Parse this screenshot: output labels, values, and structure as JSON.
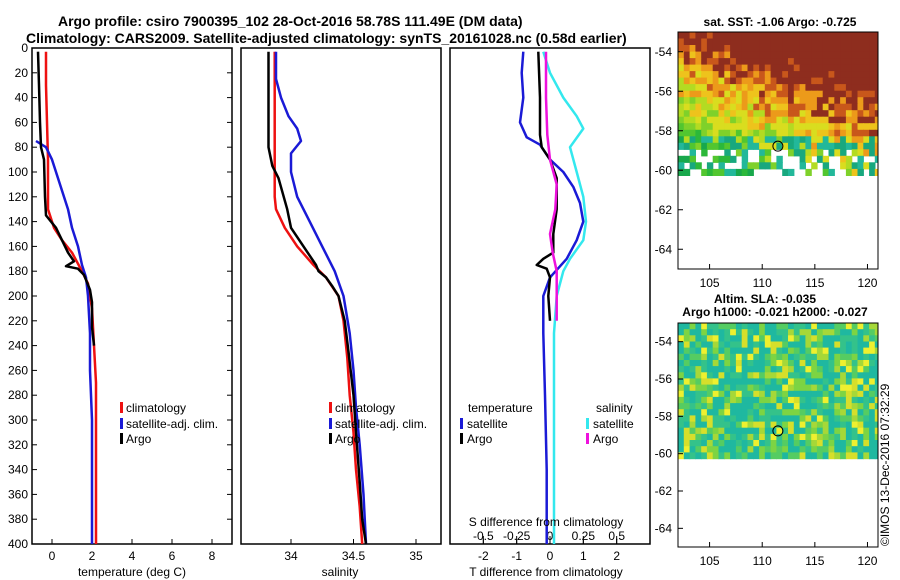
{
  "header": {
    "line1": "Argo profile: csiro 7900395_102 28-Oct-2016 58.78S 111.49E (DM data)",
    "line2": "Climatology: CARS2009. Satellite-adjusted climatology: synTS_20161028.nc (0.58d earlier)"
  },
  "colors": {
    "climatology": "#ee1111",
    "satellite": "#1a1ad6",
    "argo": "#000000",
    "sat_salinity": "#33e8ee",
    "argo_salinity": "#ee11dd"
  },
  "chart_data": [
    {
      "type": "line",
      "title": "",
      "xlabel": "temperature (deg C)",
      "ylabel": "",
      "xlim": [
        -1,
        9
      ],
      "ylim": [
        400,
        0
      ],
      "xticks": [
        0,
        2,
        4,
        6,
        8
      ],
      "xtick_labels": [
        "0",
        "2",
        "4",
        "6",
        "8"
      ],
      "yticks": [
        0,
        20,
        40,
        60,
        80,
        100,
        120,
        140,
        160,
        180,
        200,
        220,
        240,
        260,
        280,
        300,
        320,
        340,
        360,
        380,
        400
      ],
      "ytick_labels": [
        "0",
        "20",
        "40",
        "60",
        "80",
        "100",
        "120",
        "140",
        "160",
        "180",
        "200",
        "220",
        "240",
        "260",
        "280",
        "300",
        "320",
        "340",
        "360",
        "380",
        "400"
      ],
      "legend": [
        "climatology",
        "satellite-adj. clim.",
        "Argo"
      ],
      "series": [
        {
          "name": "climatology",
          "color": "#ee1111",
          "points": [
            [
              -0.3,
              3
            ],
            [
              -0.3,
              30
            ],
            [
              -0.25,
              60
            ],
            [
              -0.2,
              90
            ],
            [
              -0.2,
              110
            ],
            [
              -0.2,
              130
            ],
            [
              0.1,
              145
            ],
            [
              0.5,
              155
            ],
            [
              1.0,
              165
            ],
            [
              1.5,
              180
            ],
            [
              1.8,
              190
            ],
            [
              2.0,
              210
            ],
            [
              2.1,
              240
            ],
            [
              2.2,
              270
            ],
            [
              2.2,
              300
            ],
            [
              2.2,
              340
            ],
            [
              2.2,
              380
            ],
            [
              2.2,
              400
            ]
          ]
        },
        {
          "name": "satellite-adj. clim.",
          "color": "#1a1ad6",
          "points": [
            [
              -0.8,
              75
            ],
            [
              -0.3,
              80
            ],
            [
              0.0,
              90
            ],
            [
              0.2,
              100
            ],
            [
              0.5,
              115
            ],
            [
              0.8,
              130
            ],
            [
              1.0,
              145
            ],
            [
              1.3,
              160
            ],
            [
              1.5,
              175
            ],
            [
              1.7,
              185
            ],
            [
              1.8,
              200
            ],
            [
              1.9,
              230
            ],
            [
              1.9,
              260
            ],
            [
              2.0,
              300
            ],
            [
              2.0,
              340
            ],
            [
              2.0,
              380
            ],
            [
              2.0,
              400
            ]
          ]
        },
        {
          "name": "Argo",
          "color": "#000000",
          "points": [
            [
              -0.7,
              3
            ],
            [
              -0.65,
              30
            ],
            [
              -0.6,
              60
            ],
            [
              -0.55,
              80
            ],
            [
              -0.4,
              90
            ],
            [
              -0.35,
              120
            ],
            [
              -0.3,
              135
            ],
            [
              0.2,
              145
            ],
            [
              0.5,
              155
            ],
            [
              0.8,
              165
            ],
            [
              1.1,
              172
            ],
            [
              0.7,
              176
            ],
            [
              1.3,
              178
            ],
            [
              1.6,
              183
            ],
            [
              1.9,
              195
            ],
            [
              2.0,
              205
            ],
            [
              2.0,
              225
            ],
            [
              2.1,
              240
            ]
          ]
        }
      ]
    },
    {
      "type": "line",
      "title": "",
      "xlabel": "salinity",
      "ylabel": "",
      "xlim": [
        33.6,
        35.2
      ],
      "ylim": [
        400,
        0
      ],
      "xticks": [
        34,
        34.5,
        35
      ],
      "xtick_labels": [
        "34",
        "34.5",
        "35"
      ],
      "legend": [
        "climatology",
        "satellite-adj. clim.",
        "Argo"
      ],
      "series": [
        {
          "name": "climatology",
          "color": "#ee1111",
          "points": [
            [
              33.87,
              3
            ],
            [
              33.87,
              40
            ],
            [
              33.87,
              80
            ],
            [
              33.87,
              100
            ],
            [
              33.87,
              120
            ],
            [
              33.88,
              130
            ],
            [
              33.95,
              145
            ],
            [
              34.05,
              160
            ],
            [
              34.18,
              175
            ],
            [
              34.28,
              185
            ],
            [
              34.38,
              200
            ],
            [
              34.42,
              220
            ],
            [
              34.45,
              250
            ],
            [
              34.47,
              280
            ],
            [
              34.5,
              310
            ],
            [
              34.52,
              340
            ],
            [
              34.55,
              370
            ],
            [
              34.57,
              400
            ]
          ]
        },
        {
          "name": "satellite-adj. clim.",
          "color": "#1a1ad6",
          "points": [
            [
              33.88,
              3
            ],
            [
              33.88,
              25
            ],
            [
              33.92,
              40
            ],
            [
              33.98,
              55
            ],
            [
              34.05,
              65
            ],
            [
              34.08,
              75
            ],
            [
              34.0,
              85
            ],
            [
              34.0,
              100
            ],
            [
              34.05,
              120
            ],
            [
              34.15,
              140
            ],
            [
              34.25,
              160
            ],
            [
              34.35,
              180
            ],
            [
              34.42,
              200
            ],
            [
              34.47,
              230
            ],
            [
              34.5,
              260
            ],
            [
              34.52,
              290
            ],
            [
              34.55,
              320
            ],
            [
              34.58,
              360
            ],
            [
              34.6,
              400
            ]
          ]
        },
        {
          "name": "Argo",
          "color": "#000000",
          "points": [
            [
              33.82,
              3
            ],
            [
              33.82,
              40
            ],
            [
              33.82,
              80
            ],
            [
              33.85,
              95
            ],
            [
              33.9,
              105
            ],
            [
              33.97,
              130
            ],
            [
              34.0,
              145
            ],
            [
              34.1,
              160
            ],
            [
              34.2,
              175
            ],
            [
              34.22,
              180
            ],
            [
              34.28,
              185
            ],
            [
              34.33,
              192
            ],
            [
              34.38,
              200
            ],
            [
              34.43,
              220
            ],
            [
              34.46,
              245
            ],
            [
              34.5,
              280
            ],
            [
              34.52,
              310
            ],
            [
              34.55,
              350
            ],
            [
              34.57,
              380
            ],
            [
              34.6,
              400
            ]
          ]
        }
      ]
    },
    {
      "type": "line",
      "title": "",
      "xlabel": "T difference from climatology",
      "ylabel": "",
      "xlim": [
        -3,
        3
      ],
      "ylim": [
        400,
        0
      ],
      "xticks": [
        -2,
        -1,
        0,
        1,
        2
      ],
      "xtick_labels": [
        "-2",
        "-1",
        "0",
        "1",
        "2"
      ],
      "x2label": "S difference from climatology",
      "x2lim": [
        -0.75,
        0.75
      ],
      "x2ticks": [
        -0.5,
        -0.25,
        0,
        0.25,
        0.5
      ],
      "x2tick_labels": [
        "-0.5",
        "-0.25",
        "0",
        "0.25",
        "0.5"
      ],
      "legend_left_title": "temperature",
      "legend_right_title": "salinity",
      "legend": [
        "satellite",
        "Argo",
        "satellite",
        "Argo"
      ],
      "series": [
        {
          "name": "temperature satellite",
          "color": "#1a1ad6",
          "axis": "T",
          "points": [
            [
              -0.8,
              3
            ],
            [
              -0.85,
              20
            ],
            [
              -0.8,
              40
            ],
            [
              -0.9,
              60
            ],
            [
              -0.7,
              72
            ],
            [
              -0.3,
              78
            ],
            [
              0.0,
              90
            ],
            [
              0.4,
              100
            ],
            [
              0.7,
              112
            ],
            [
              0.9,
              125
            ],
            [
              1.0,
              140
            ],
            [
              0.8,
              155
            ],
            [
              0.5,
              170
            ],
            [
              0.0,
              185
            ],
            [
              -0.2,
              200
            ],
            [
              -0.2,
              230
            ],
            [
              -0.15,
              280
            ],
            [
              -0.1,
              340
            ],
            [
              -0.1,
              400
            ]
          ]
        },
        {
          "name": "temperature Argo",
          "color": "#000000",
          "axis": "T",
          "points": [
            [
              -0.35,
              3
            ],
            [
              -0.3,
              40
            ],
            [
              -0.3,
              70
            ],
            [
              -0.25,
              80
            ],
            [
              0.0,
              90
            ],
            [
              0.2,
              105
            ],
            [
              0.2,
              130
            ],
            [
              0.1,
              150
            ],
            [
              0.1,
              165
            ],
            [
              -0.2,
              170
            ],
            [
              -0.4,
              175
            ],
            [
              -0.1,
              178
            ],
            [
              0.0,
              185
            ],
            [
              -0.05,
              200
            ],
            [
              0.0,
              220
            ]
          ]
        },
        {
          "name": "salinity satellite",
          "color": "#33e8ee",
          "axis": "S",
          "points": [
            [
              -0.05,
              3
            ],
            [
              0.0,
              20
            ],
            [
              0.1,
              40
            ],
            [
              0.2,
              55
            ],
            [
              0.25,
              65
            ],
            [
              0.15,
              80
            ],
            [
              0.2,
              100
            ],
            [
              0.25,
              120
            ],
            [
              0.27,
              140
            ],
            [
              0.25,
              155
            ],
            [
              0.15,
              170
            ],
            [
              0.1,
              180
            ],
            [
              0.05,
              200
            ],
            [
              0.03,
              230
            ],
            [
              0.03,
              280
            ],
            [
              0.03,
              330
            ],
            [
              0.03,
              400
            ]
          ]
        },
        {
          "name": "salinity Argo",
          "color": "#ee11dd",
          "axis": "S",
          "points": [
            [
              -0.03,
              3
            ],
            [
              -0.03,
              40
            ],
            [
              -0.02,
              70
            ],
            [
              0.0,
              90
            ],
            [
              0.05,
              110
            ],
            [
              0.04,
              130
            ],
            [
              0.0,
              150
            ],
            [
              0.02,
              165
            ],
            [
              0.05,
              180
            ],
            [
              0.05,
              200
            ],
            [
              0.05,
              220
            ]
          ]
        }
      ]
    },
    {
      "type": "heatmap",
      "title": "sat. SST: -1.06 Argo: -0.725",
      "xlim": [
        102,
        121
      ],
      "ylim": [
        -65,
        -53
      ],
      "xticks": [
        105,
        110,
        115,
        120
      ],
      "xtick_labels": [
        "105",
        "110",
        "115",
        "120"
      ],
      "yticks": [
        -54,
        -56,
        -58,
        -60,
        -62,
        -64
      ],
      "ytick_labels": [
        "-54",
        "-56",
        "-58",
        "-60",
        "-62",
        "-64"
      ],
      "marker": {
        "lon": 111.49,
        "lat": -58.78
      }
    },
    {
      "type": "heatmap",
      "title": "Altim. SLA: -0.035",
      "subtitle": "Argo h1000: -0.021 h2000: -0.027",
      "xlim": [
        102,
        121
      ],
      "ylim": [
        -65,
        -53
      ],
      "xticks": [
        105,
        110,
        115,
        120
      ],
      "xtick_labels": [
        "105",
        "110",
        "115",
        "120"
      ],
      "yticks": [
        -54,
        -56,
        -58,
        -60,
        -62,
        -64
      ],
      "ytick_labels": [
        "-54",
        "-56",
        "-58",
        "-60",
        "-62",
        "-64"
      ],
      "marker": {
        "lon": 111.49,
        "lat": -58.78
      }
    }
  ],
  "watermark": "©IMOS 13-Dec-2016 07:32:29"
}
